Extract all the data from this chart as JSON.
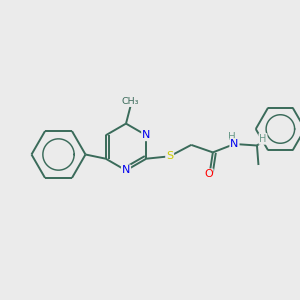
{
  "background_color": "#ebebeb",
  "bond_color": "#3a6b5a",
  "bond_color_dark": "#2d5548",
  "bond_width": 1.4,
  "atom_colors": {
    "N": "#0000ee",
    "S": "#cccc00",
    "O": "#ff0000",
    "C": "#3a6b5a",
    "H": "#6a9a8a"
  },
  "fig_bg": "#ebebeb",
  "xlim": [
    0,
    10
  ],
  "ylim": [
    0,
    10
  ]
}
